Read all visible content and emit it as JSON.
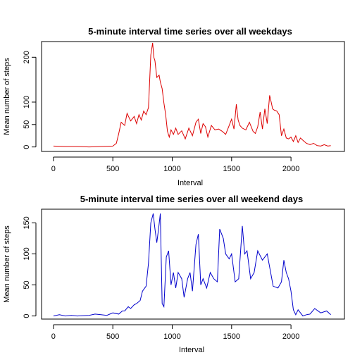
{
  "chart_data": [
    {
      "type": "line",
      "title": "5-minute interval time series over all weekdays",
      "xlabel": "Interval",
      "ylabel": "Mean number of steps",
      "xlim": [
        -100,
        2450
      ],
      "ylim": [
        -10,
        235
      ],
      "xticks": [
        0,
        500,
        1000,
        1500,
        2000
      ],
      "yticks": [
        0,
        50,
        100,
        200
      ],
      "color": "#dd0000",
      "series": [
        {
          "name": "weekdays",
          "x": [
            0,
            100,
            200,
            300,
            400,
            500,
            530,
            550,
            570,
            600,
            620,
            650,
            680,
            700,
            720,
            740,
            760,
            780,
            800,
            820,
            835,
            845,
            855,
            870,
            890,
            900,
            915,
            930,
            945,
            960,
            975,
            990,
            1010,
            1030,
            1050,
            1080,
            1110,
            1140,
            1170,
            1200,
            1220,
            1240,
            1260,
            1280,
            1300,
            1330,
            1360,
            1390,
            1420,
            1450,
            1480,
            1500,
            1520,
            1540,
            1555,
            1570,
            1590,
            1620,
            1650,
            1680,
            1700,
            1720,
            1740,
            1760,
            1780,
            1800,
            1820,
            1835,
            1845,
            1860,
            1880,
            1900,
            1920,
            1940,
            1960,
            1980,
            2000,
            2020,
            2040,
            2060,
            2080,
            2100,
            2130,
            2160,
            2190,
            2220,
            2250,
            2280,
            2310,
            2335
          ],
          "values": [
            2,
            1,
            1,
            0,
            1,
            2,
            8,
            30,
            55,
            48,
            75,
            58,
            68,
            52,
            72,
            60,
            80,
            72,
            88,
            205,
            232,
            200,
            192,
            155,
            160,
            145,
            130,
            98,
            72,
            35,
            22,
            38,
            28,
            42,
            28,
            36,
            18,
            42,
            25,
            55,
            62,
            30,
            52,
            45,
            22,
            48,
            38,
            40,
            35,
            28,
            48,
            62,
            40,
            95,
            60,
            48,
            42,
            38,
            55,
            35,
            30,
            45,
            78,
            40,
            85,
            52,
            115,
            98,
            85,
            82,
            80,
            72,
            25,
            40,
            20,
            18,
            22,
            12,
            25,
            10,
            20,
            15,
            8,
            5,
            8,
            3,
            2,
            5,
            2,
            3
          ]
        }
      ]
    },
    {
      "type": "line",
      "title": "5-minute interval time series over all weekend days",
      "xlabel": "Interval",
      "ylabel": "Mean number of steps",
      "xlim": [
        -100,
        2450
      ],
      "ylim": [
        -5,
        172
      ],
      "xticks": [
        0,
        500,
        1000,
        1500,
        2000
      ],
      "yticks": [
        0,
        50,
        100,
        150
      ],
      "color": "#0000cc",
      "series": [
        {
          "name": "weekend",
          "x": [
            0,
            50,
            100,
            150,
            200,
            300,
            350,
            400,
            450,
            500,
            550,
            580,
            600,
            630,
            650,
            680,
            700,
            730,
            750,
            780,
            800,
            820,
            840,
            855,
            870,
            885,
            900,
            915,
            930,
            950,
            970,
            990,
            1010,
            1030,
            1050,
            1080,
            1100,
            1130,
            1150,
            1170,
            1200,
            1220,
            1240,
            1260,
            1290,
            1320,
            1350,
            1380,
            1400,
            1430,
            1450,
            1480,
            1500,
            1530,
            1560,
            1590,
            1610,
            1630,
            1660,
            1690,
            1720,
            1760,
            1800,
            1850,
            1890,
            1920,
            1940,
            1960,
            1980,
            2000,
            2020,
            2040,
            2060,
            2080,
            2100,
            2130,
            2160,
            2200,
            2250,
            2300,
            2335
          ],
          "values": [
            0,
            2,
            0,
            1,
            0,
            1,
            3,
            2,
            1,
            5,
            3,
            8,
            8,
            15,
            12,
            18,
            20,
            25,
            40,
            48,
            85,
            150,
            165,
            140,
            118,
            140,
            165,
            20,
            15,
            95,
            105,
            50,
            70,
            45,
            70,
            60,
            30,
            60,
            70,
            40,
            115,
            132,
            50,
            60,
            45,
            70,
            60,
            55,
            140,
            125,
            100,
            92,
            100,
            55,
            60,
            145,
            100,
            105,
            60,
            70,
            105,
            90,
            100,
            48,
            45,
            55,
            90,
            70,
            60,
            40,
            10,
            2,
            10,
            5,
            0,
            2,
            3,
            12,
            5,
            8,
            2
          ]
        }
      ]
    }
  ]
}
